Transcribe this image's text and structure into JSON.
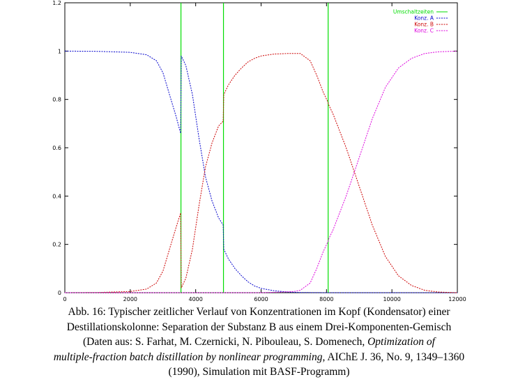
{
  "chart_data": {
    "type": "line",
    "title": "",
    "xlabel": "",
    "ylabel": "",
    "xlim": [
      0,
      12000
    ],
    "ylim": [
      0,
      1.2
    ],
    "x_ticks": [
      0,
      2000,
      4000,
      6000,
      8000,
      10000,
      12000
    ],
    "x_tick_labels": [
      "0",
      "2000",
      "4000",
      "6000",
      "8000",
      "10000",
      "12000"
    ],
    "y_ticks": [
      0,
      0.2,
      0.4,
      0.6,
      0.8,
      1,
      1.2
    ],
    "y_tick_labels": [
      "0",
      "0.2",
      "0.4",
      "0.6",
      "0.8",
      "1",
      "1.2"
    ],
    "grid": false,
    "legend_position": "top-right",
    "vlines": {
      "name": "Umschaltzeiten",
      "color": "#00dd00",
      "x": [
        3550,
        4850,
        8050
      ]
    },
    "series": [
      {
        "name": "Konz. A",
        "color": "#0000cc",
        "style": "dashed",
        "points": [
          [
            0,
            1.0
          ],
          [
            1000,
            0.999
          ],
          [
            2000,
            0.995
          ],
          [
            2500,
            0.985
          ],
          [
            2800,
            0.96
          ],
          [
            3000,
            0.91
          ],
          [
            3200,
            0.82
          ],
          [
            3400,
            0.73
          ],
          [
            3540,
            0.66
          ],
          [
            3560,
            0.98
          ],
          [
            3700,
            0.94
          ],
          [
            3900,
            0.82
          ],
          [
            4100,
            0.64
          ],
          [
            4300,
            0.48
          ],
          [
            4500,
            0.38
          ],
          [
            4700,
            0.31
          ],
          [
            4840,
            0.28
          ],
          [
            4860,
            0.18
          ],
          [
            5000,
            0.14
          ],
          [
            5200,
            0.1
          ],
          [
            5400,
            0.07
          ],
          [
            5600,
            0.045
          ],
          [
            5800,
            0.028
          ],
          [
            6000,
            0.018
          ],
          [
            6400,
            0.008
          ],
          [
            6800,
            0.003
          ],
          [
            7200,
            0.001
          ],
          [
            8000,
            0.0
          ],
          [
            12000,
            0.0
          ]
        ]
      },
      {
        "name": "Konz. B",
        "color": "#cc0000",
        "style": "dashed",
        "points": [
          [
            0,
            0.0
          ],
          [
            1000,
            0.001
          ],
          [
            2000,
            0.005
          ],
          [
            2500,
            0.015
          ],
          [
            2800,
            0.04
          ],
          [
            3000,
            0.09
          ],
          [
            3200,
            0.18
          ],
          [
            3400,
            0.27
          ],
          [
            3540,
            0.33
          ],
          [
            3560,
            0.02
          ],
          [
            3700,
            0.06
          ],
          [
            3900,
            0.18
          ],
          [
            4100,
            0.36
          ],
          [
            4300,
            0.52
          ],
          [
            4500,
            0.62
          ],
          [
            4700,
            0.69
          ],
          [
            4840,
            0.71
          ],
          [
            4860,
            0.82
          ],
          [
            5000,
            0.86
          ],
          [
            5200,
            0.9
          ],
          [
            5400,
            0.93
          ],
          [
            5600,
            0.955
          ],
          [
            5800,
            0.97
          ],
          [
            6000,
            0.98
          ],
          [
            6400,
            0.988
          ],
          [
            6800,
            0.99
          ],
          [
            7200,
            0.99
          ],
          [
            7500,
            0.96
          ],
          [
            7700,
            0.9
          ],
          [
            7900,
            0.83
          ],
          [
            8040,
            0.79
          ],
          [
            8060,
            0.78
          ],
          [
            8200,
            0.74
          ],
          [
            8600,
            0.6
          ],
          [
            9000,
            0.44
          ],
          [
            9400,
            0.28
          ],
          [
            9800,
            0.15
          ],
          [
            10200,
            0.07
          ],
          [
            10600,
            0.03
          ],
          [
            11000,
            0.01
          ],
          [
            11400,
            0.003
          ],
          [
            12000,
            0.0
          ]
        ]
      },
      {
        "name": "Konz. C",
        "color": "#dd00dd",
        "style": "dashed",
        "points": [
          [
            0,
            0.0
          ],
          [
            6000,
            0.0
          ],
          [
            6500,
            0.002
          ],
          [
            7000,
            0.005
          ],
          [
            7200,
            0.01
          ],
          [
            7500,
            0.04
          ],
          [
            7700,
            0.1
          ],
          [
            7900,
            0.17
          ],
          [
            8040,
            0.21
          ],
          [
            8060,
            0.22
          ],
          [
            8200,
            0.26
          ],
          [
            8600,
            0.4
          ],
          [
            9000,
            0.56
          ],
          [
            9400,
            0.72
          ],
          [
            9800,
            0.85
          ],
          [
            10200,
            0.93
          ],
          [
            10600,
            0.97
          ],
          [
            11000,
            0.99
          ],
          [
            11400,
            0.997
          ],
          [
            12000,
            1.0
          ]
        ]
      }
    ]
  },
  "caption": {
    "line1": "Abb. 16: Typischer zeitlicher Verlauf von Konzentrationen im Kopf (Kondensator) einer",
    "line2": "Destillationskolonne: Separation der Substanz B aus einem Drei-Komponenten-Gemisch",
    "line3_prefix": "(Daten aus:  S. Farhat, M. Czernicki, N. Pibouleau, S. Domenech, ",
    "line3_italic": "Optimization of",
    "line4_italic": "multiple-fraction batch distillation by nonlinear programming",
    "line4_suffix": ", AIChE J. 36, No. 9, 1349–1360",
    "line5": "(1990), Simulation mit BASF-Programm)"
  }
}
